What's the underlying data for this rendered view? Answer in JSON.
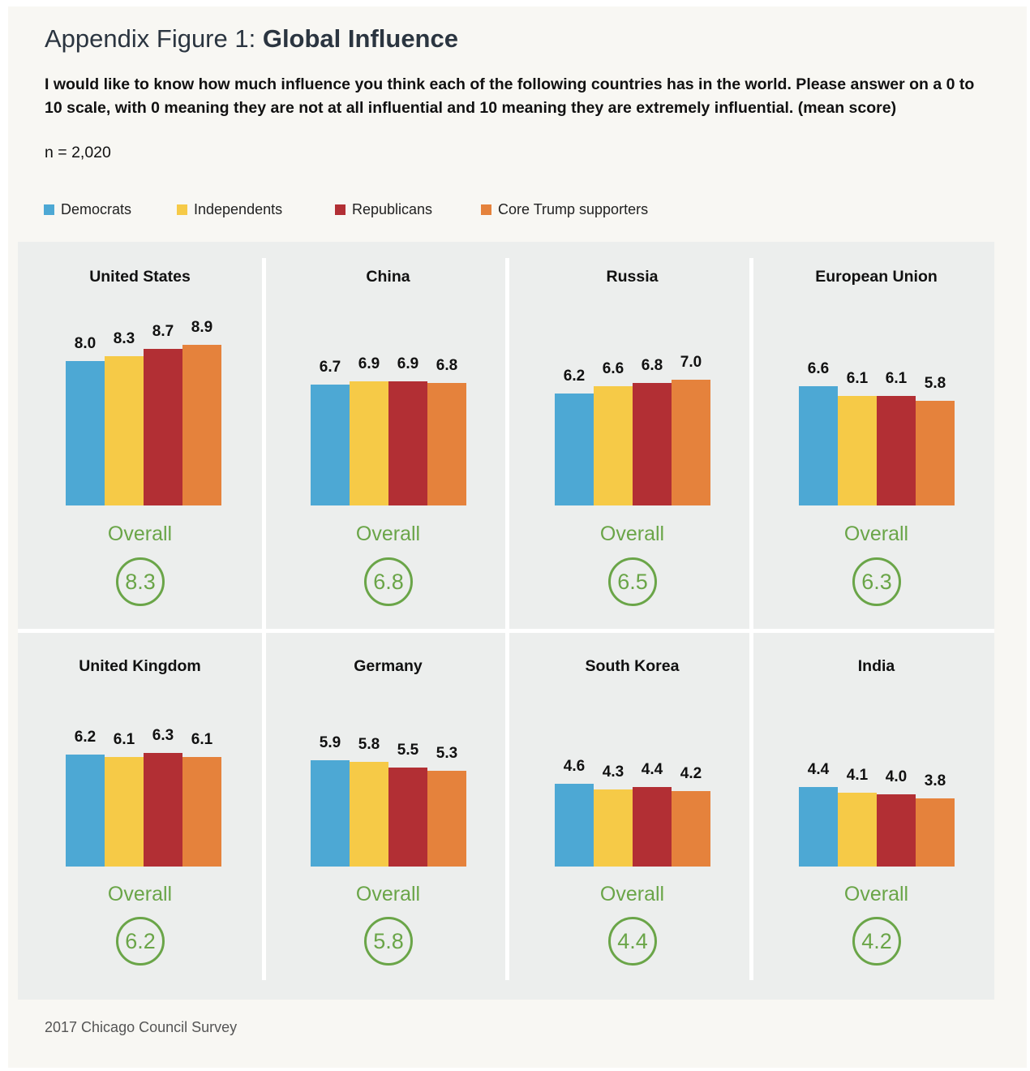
{
  "title": {
    "prefix": "Appendix Figure 1: ",
    "bold": "Global Influence"
  },
  "question": "I would like to know how much influence you think each of the following countries has in the world. Please answer on a 0 to 10 scale, with 0 meaning they are not at all influential and 10 meaning they are extremely influential. (mean score)",
  "sample": "n = 2,020",
  "source": "2017 Chicago Council Survey",
  "overall_label": "Overall",
  "colors": {
    "Democrats": "#4da8d4",
    "Independents": "#f6ca47",
    "Republicans": "#b22f34",
    "Core Trump supporters": "#e5823c",
    "overall": "#6aa548"
  },
  "chart_data": {
    "type": "bar",
    "legend": [
      "Democrats",
      "Independents",
      "Republicans",
      "Core Trump supporters"
    ],
    "legend_position": "top-left",
    "value_range": [
      0,
      10
    ],
    "grid": false,
    "panels": [
      {
        "country": "United States",
        "values": [
          8.0,
          8.3,
          8.7,
          8.9
        ],
        "labels": [
          "8.0",
          "8.3",
          "8.7",
          "8.9"
        ],
        "overall": "8.3"
      },
      {
        "country": "China",
        "values": [
          6.7,
          6.9,
          6.9,
          6.8
        ],
        "labels": [
          "6.7",
          "6.9",
          "6.9",
          "6.8"
        ],
        "overall": "6.8"
      },
      {
        "country": "Russia",
        "values": [
          6.2,
          6.6,
          6.8,
          7.0
        ],
        "labels": [
          "6.2",
          "6.6",
          "6.8",
          "7.0"
        ],
        "overall": "6.5"
      },
      {
        "country": "European Union",
        "values": [
          6.6,
          6.1,
          6.1,
          5.8
        ],
        "labels": [
          "6.6",
          "6.1",
          "6.1",
          "5.8"
        ],
        "overall": "6.3"
      },
      {
        "country": "United Kingdom",
        "values": [
          6.2,
          6.1,
          6.3,
          6.1
        ],
        "labels": [
          "6.2",
          "6.1",
          "6.3",
          "6.1"
        ],
        "overall": "6.2"
      },
      {
        "country": "Germany",
        "values": [
          5.9,
          5.8,
          5.5,
          5.3
        ],
        "labels": [
          "5.9",
          "5.8",
          "5.5",
          "5.3"
        ],
        "overall": "5.8"
      },
      {
        "country": "South Korea",
        "values": [
          4.6,
          4.3,
          4.4,
          4.2
        ],
        "labels": [
          "4.6",
          "4.3",
          "4.4",
          "4.2"
        ],
        "overall": "4.4"
      },
      {
        "country": "India",
        "values": [
          4.4,
          4.1,
          4.0,
          3.8
        ],
        "labels": [
          "4.4",
          "4.1",
          "4.0",
          "3.8"
        ],
        "overall": "4.2"
      }
    ]
  }
}
